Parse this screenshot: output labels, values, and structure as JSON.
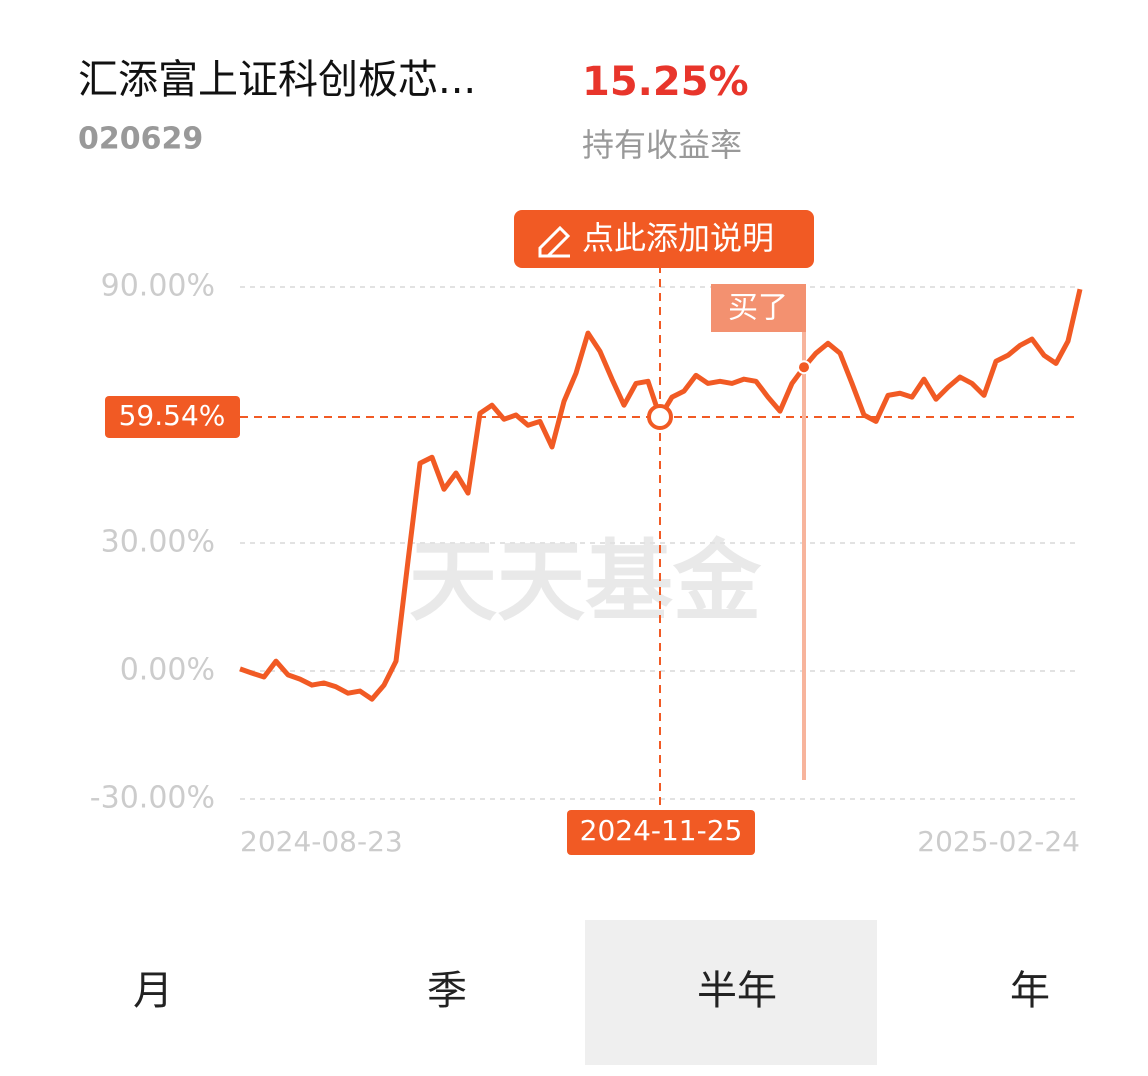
{
  "header": {
    "title": "汇添富上证科创板芯...",
    "code": "020629",
    "return": "15.25%",
    "return_label": "持有收益率"
  },
  "note_button": "点此添加说明",
  "watermark": "天天基金",
  "chart_data": {
    "type": "line",
    "color": "#f15a24",
    "categories": [
      "2024-08-23",
      null,
      null,
      null,
      null,
      null,
      null,
      null,
      null,
      null,
      null,
      null,
      null,
      null,
      null,
      null,
      null,
      null,
      null,
      null,
      null,
      null,
      null,
      null,
      null,
      null,
      null,
      null,
      null,
      null,
      null,
      null,
      null,
      null,
      null,
      "2024-11-25",
      null,
      null,
      null,
      null,
      null,
      null,
      null,
      null,
      null,
      null,
      null,
      null,
      null,
      null,
      null,
      null,
      null,
      null,
      null,
      null,
      null,
      null,
      null,
      null,
      null,
      null,
      null,
      null,
      null,
      null,
      null,
      null,
      null,
      null,
      "2025-02-24"
    ],
    "values": [
      0.5,
      -0.5,
      -1.4,
      2.3,
      -0.9,
      -1.9,
      -3.3,
      -2.8,
      -3.7,
      -5.2,
      -4.7,
      -6.6,
      -3.3,
      2.3,
      25.8,
      48.7,
      50.1,
      42.6,
      46.4,
      41.7,
      60.4,
      62.3,
      59.0,
      60.0,
      57.6,
      58.5,
      52.5,
      63.2,
      69.8,
      79.2,
      74.9,
      68.4,
      62.3,
      67.4,
      67.9,
      59.54,
      64.2,
      65.6,
      69.3,
      67.4,
      67.9,
      67.4,
      68.4,
      67.9,
      64.2,
      60.9,
      67.4,
      71.2,
      74.5,
      76.8,
      74.5,
      67.4,
      60.0,
      58.5,
      64.6,
      65.1,
      64.2,
      68.4,
      63.7,
      66.5,
      68.9,
      67.4,
      64.6,
      72.6,
      74.0,
      76.3,
      77.8,
      74.0,
      72.1,
      77.3,
      89.5
    ],
    "ylim": [
      -30,
      90
    ],
    "yticks": [
      {
        "value": -30,
        "label": "-30.00%"
      },
      {
        "value": 0,
        "label": "0.00%"
      },
      {
        "value": 30,
        "label": "30.00%"
      },
      {
        "value": 90,
        "label": "90.00%"
      }
    ],
    "grid": true,
    "crosshair": {
      "value": 59.54,
      "label": "59.54%"
    },
    "buy_label": "买了"
  },
  "tabs": [
    "月",
    "季",
    "半年",
    "年"
  ],
  "selected_tab": "半年"
}
